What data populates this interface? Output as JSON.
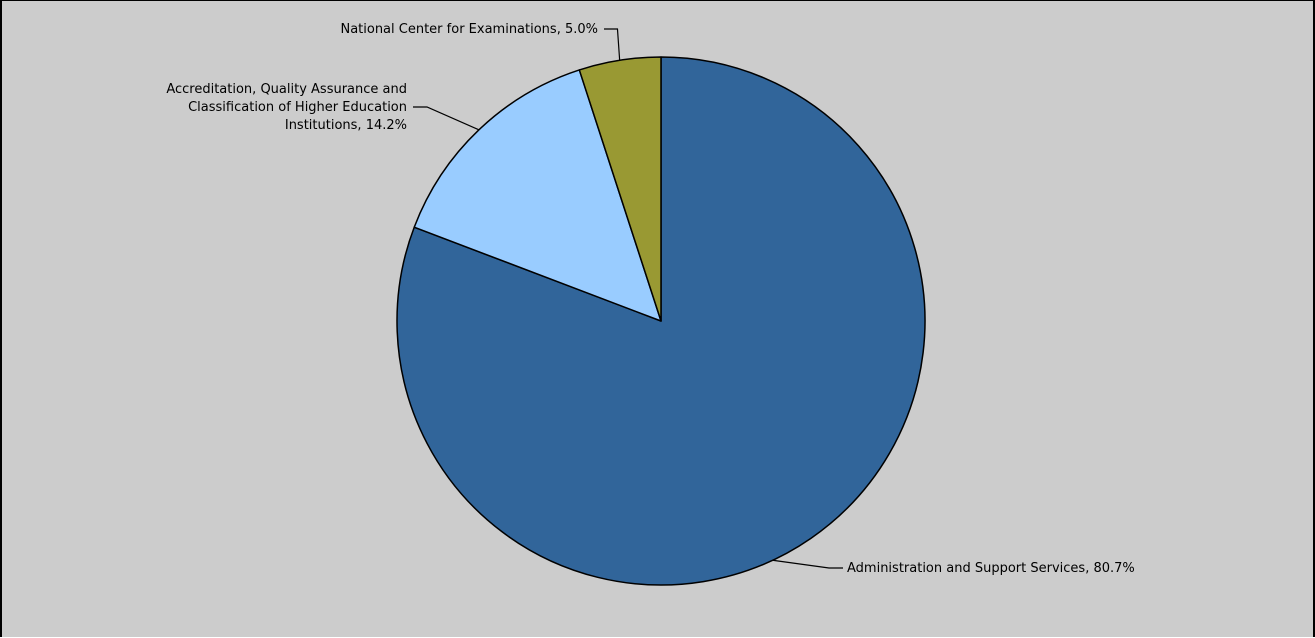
{
  "chart_data": {
    "type": "pie",
    "start": "12 o'clock, clockwise",
    "colors": {
      "background": "#cccccc",
      "outline": "#000000"
    },
    "slices": [
      {
        "label_lines": [
          "Administration and Support Services, 80.7%"
        ],
        "category": "Administration and Support Services",
        "value": 80.7,
        "color": "#31659a"
      },
      {
        "label_lines": [
          "Accreditation, Quality Assurance and",
          "Classification of Higher Education",
          "Institutions, 14.2%"
        ],
        "category": "Accreditation, Quality Assurance and Classification of Higher Education Institutions",
        "value": 14.2,
        "color": "#99ccff"
      },
      {
        "label_lines": [
          "National Center for Examinations, 5.0%"
        ],
        "category": "National Center for Examinations",
        "value": 5.0,
        "color": "#999933"
      }
    ]
  }
}
